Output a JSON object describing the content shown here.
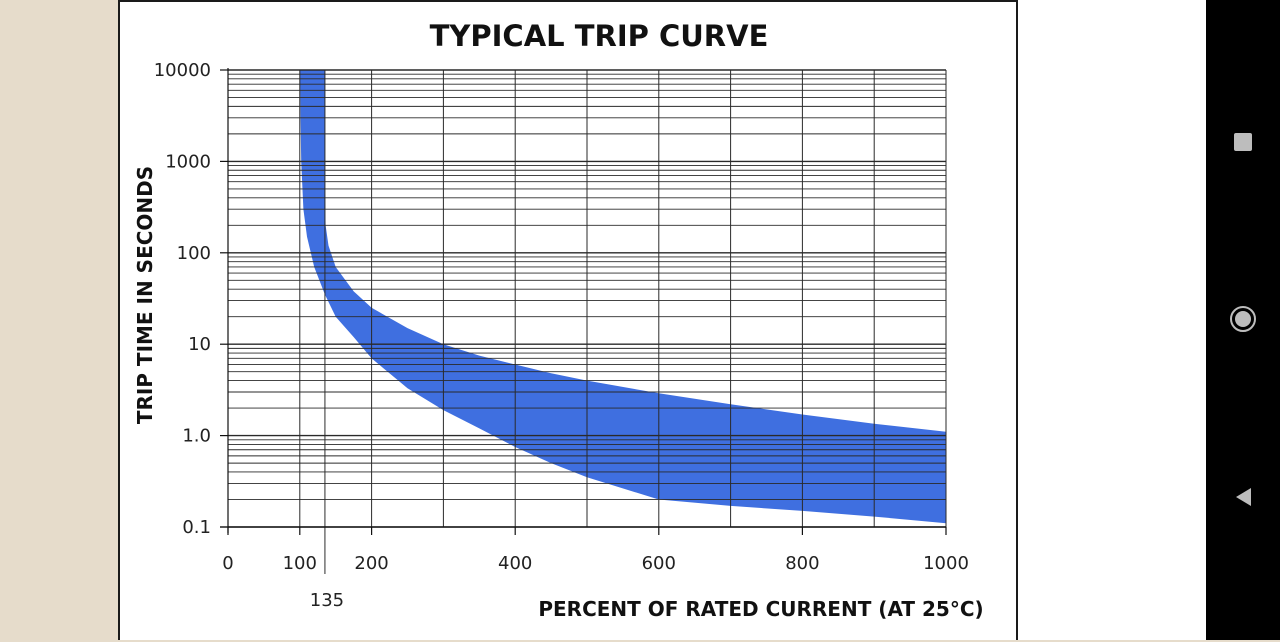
{
  "chart_data": {
    "type": "area",
    "title": "TYPICAL TRIP CURVE",
    "xlabel": "PERCENT OF RATED CURRENT (AT 25°C)",
    "ylabel": "TRIP TIME IN SECONDS",
    "xlim": [
      0,
      1000
    ],
    "ylim": [
      0.1,
      10000
    ],
    "y_scale": "log",
    "grid": true,
    "x_ticks": [
      0,
      100,
      200,
      400,
      600,
      800,
      1000
    ],
    "x_tick_labels": [
      "0",
      "100",
      "200",
      "400",
      "600",
      "800",
      "1000"
    ],
    "x_marker": {
      "value": 135,
      "label": "135"
    },
    "y_ticks": [
      0.1,
      1,
      10,
      100,
      1000,
      10000
    ],
    "y_tick_labels": [
      "0.1",
      "1.0",
      "10",
      "100",
      "1000",
      "10000"
    ],
    "band_color": "#3f6fe0",
    "series": [
      {
        "x": [
          100,
          102,
          105,
          110,
          120,
          135,
          150,
          175,
          200,
          250,
          300,
          350,
          400,
          450,
          500,
          600,
          700,
          800,
          900,
          1000
        ],
        "values": [
          10000,
          1000,
          300,
          150,
          70,
          35,
          20,
          12,
          7,
          3.3,
          1.9,
          1.2,
          0.75,
          0.5,
          0.35,
          0.2,
          0.17,
          0.15,
          0.13,
          0.11
        ]
      },
      {
        "x": [
          135,
          135,
          136,
          140,
          150,
          175,
          200,
          250,
          300,
          350,
          400,
          450,
          500,
          600,
          700,
          800,
          900,
          1000
        ],
        "values": [
          10000,
          500,
          200,
          120,
          70,
          38,
          25,
          15,
          10,
          7.5,
          6,
          4.8,
          4,
          2.9,
          2.2,
          1.7,
          1.35,
          1.1
        ]
      }
    ]
  },
  "navbar": {
    "color": "#000000",
    "icons": [
      "recent-apps-icon",
      "home-icon",
      "back-icon"
    ]
  }
}
